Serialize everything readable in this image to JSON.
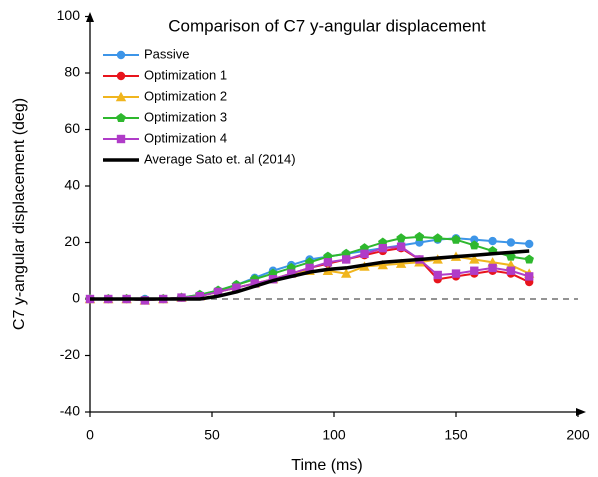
{
  "chart_data": {
    "type": "line",
    "title": "Comparison of C7 y-angular displacement",
    "xlabel": "Time (ms)",
    "ylabel": "C7 y-angular displacement (deg)",
    "x": [
      0,
      7.5,
      15,
      22.5,
      30,
      37.5,
      45,
      52.5,
      60,
      67.5,
      75,
      82.5,
      90,
      97.5,
      105,
      112.5,
      120,
      127.5,
      135,
      142.5,
      150,
      157.5,
      165,
      172.5,
      180
    ],
    "series": [
      {
        "name": "Passive",
        "color": "#3d95e8",
        "marker": "circle",
        "values": [
          0,
          0,
          0,
          0,
          0,
          0.5,
          1.5,
          3,
          5,
          7.5,
          10,
          12,
          14,
          15,
          16,
          17,
          18,
          19,
          20,
          21,
          21.5,
          21,
          20.5,
          20,
          19.5
        ]
      },
      {
        "name": "Optimization 1",
        "color": "#e8141c",
        "marker": "circle",
        "values": [
          0,
          0,
          0,
          -0.5,
          0,
          0.5,
          1,
          2.5,
          4,
          5.5,
          7,
          9,
          11,
          12.5,
          14,
          15.5,
          17,
          18,
          14,
          7,
          8,
          9,
          10,
          9,
          6
        ]
      },
      {
        "name": "Optimization 2",
        "color": "#f0b51e",
        "marker": "triangle",
        "values": [
          0,
          0,
          0,
          -0.5,
          0,
          0.5,
          1,
          2.5,
          4,
          5.5,
          7,
          9,
          10,
          10,
          9,
          11.5,
          12,
          12.5,
          13,
          14,
          15,
          14,
          13,
          12,
          9
        ]
      },
      {
        "name": "Optimization 3",
        "color": "#2eb82e",
        "marker": "pentagon",
        "values": [
          0,
          0,
          0,
          -0.5,
          0,
          0.5,
          1.5,
          3,
          5,
          7,
          9,
          11,
          13,
          15,
          16,
          18,
          20,
          21.5,
          22,
          21.5,
          21,
          19,
          17,
          15,
          14
        ]
      },
      {
        "name": "Optimization 4",
        "color": "#b03cc8",
        "marker": "square",
        "values": [
          0,
          0,
          0,
          -0.5,
          0,
          0.5,
          1,
          2.5,
          4,
          5.5,
          7,
          9,
          11,
          13,
          14,
          16,
          18,
          18.5,
          14,
          8.5,
          9,
          10,
          11,
          10,
          8
        ]
      },
      {
        "name": "Average Sato et. al (2014)",
        "color": "#000000",
        "marker": "none",
        "values": [
          0,
          0,
          0,
          0,
          0,
          0,
          0,
          1,
          2.5,
          4.5,
          6.5,
          8,
          9.5,
          10.5,
          11,
          12,
          13,
          13.5,
          14,
          14.5,
          15,
          15.5,
          16,
          16.5,
          17
        ]
      }
    ],
    "xlim": [
      0,
      200
    ],
    "xticks": [
      0,
      50,
      100,
      150,
      200
    ],
    "ylim": [
      -40,
      100
    ],
    "yticks": [
      -40,
      -20,
      0,
      20,
      40,
      60,
      80,
      100
    ],
    "hline": 0,
    "legend": "upper left"
  }
}
